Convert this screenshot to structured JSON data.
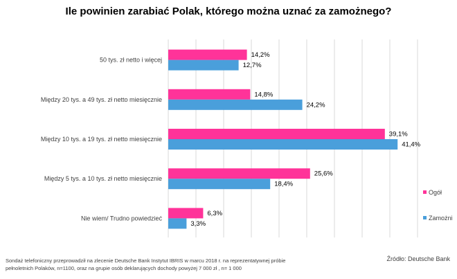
{
  "chart_data": {
    "type": "bar",
    "orientation": "horizontal",
    "title": "Ile powinien zarabiać Polak, którego można uznać za zamożnego?",
    "categories": [
      "50 tys. zł netto i więcej",
      "Między 20 tys. a 49 tys. zł netto miesięcznie",
      "Między 10 tys. a 19 tys. zł netto miesięcznie",
      "Między 5 tys. a 10 tys. zł netto miesięcznie",
      "Nie wiem/ Trudno powiedzieć"
    ],
    "series": [
      {
        "name": "Ogół",
        "color": "#FF3399",
        "values": [
          14.2,
          14.8,
          39.1,
          25.6,
          6.3
        ],
        "labels": [
          "14,2%",
          "14,8%",
          "39,1%",
          "25,6%",
          "6,3%"
        ]
      },
      {
        "name": "Zamożni",
        "color": "#4A9FDB",
        "values": [
          12.7,
          24.2,
          41.4,
          18.4,
          3.3
        ],
        "labels": [
          "12,7%",
          "24,2%",
          "41,4%",
          "18,4%",
          "3,3%"
        ]
      }
    ],
    "xlim": [
      0,
      45
    ],
    "grid": true,
    "grid_step": 5,
    "legend": "right"
  },
  "footnote": [
    "Sondaż telefoniczny przeprowadził na zlecenie Deutsche Bank  Instytut IBRIS w marcu 2018 r. na  reprezentatywnej próbie",
    "pełnoletnich Polaków, n=1100, oraz na grupie osób deklarujących dochody powyżej 7  000 zł , n= 1 000"
  ],
  "source": "Źródło: Deutsche Bank"
}
